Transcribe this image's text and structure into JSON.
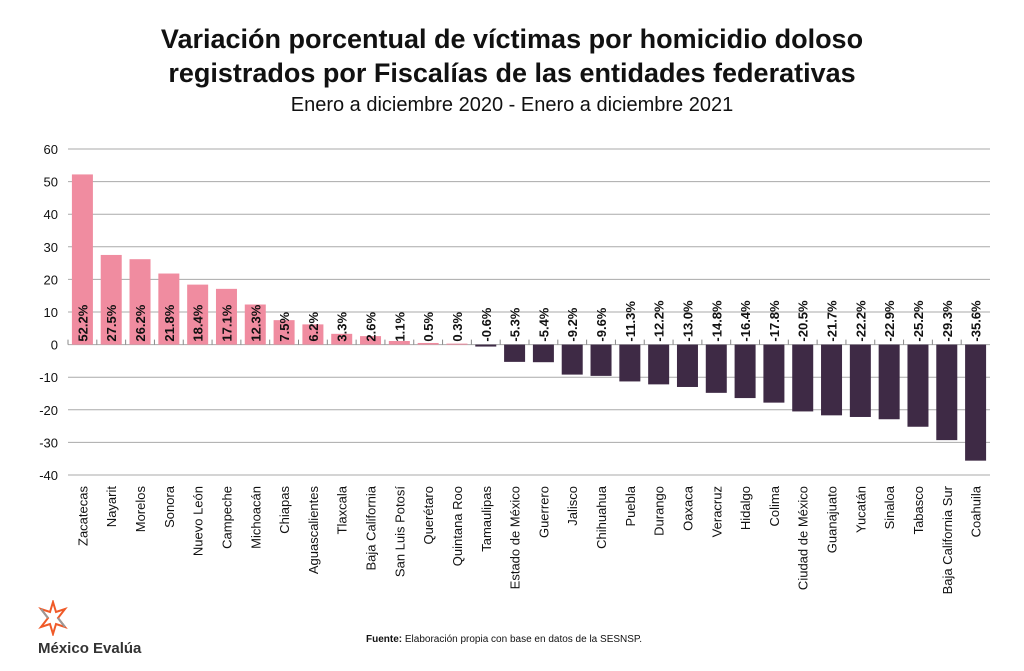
{
  "chart_data": {
    "type": "bar",
    "title_lines": [
      "Variación porcentual de víctimas por homicidio doloso",
      "registrados por Fiscalías de las entidades federativas"
    ],
    "subtitle": "Enero a diciembre 2020 - Enero a diciembre 2021",
    "xlabel": "",
    "ylabel": "",
    "ylim": [
      -40,
      60
    ],
    "yticks": [
      60,
      50,
      40,
      30,
      20,
      10,
      0,
      -10,
      -20,
      -30,
      -40
    ],
    "grid": true,
    "colors": {
      "positive": "#F08CA0",
      "negative": "#3E2A45"
    },
    "categories": [
      "Zacatecas",
      "Nayarit",
      "Morelos",
      "Sonora",
      "Nuevo León",
      "Campeche",
      "Michoacán",
      "Chiapas",
      "Aguascalientes",
      "Tlaxcala",
      "Baja California",
      "San Luis Potosí",
      "Querétaro",
      "Quintana Roo",
      "Tamaulipas",
      "Estado de México",
      "Guerrero",
      "Jalisco",
      "Chihuahua",
      "Puebla",
      "Durango",
      "Oaxaca",
      "Veracruz",
      "Hidalgo",
      "Colima",
      "Ciudad de México",
      "Guanajuato",
      "Yucatán",
      "Sinaloa",
      "Tabasco",
      "Baja California Sur",
      "Coahuila"
    ],
    "values": [
      52.2,
      27.5,
      26.2,
      21.8,
      18.4,
      17.1,
      12.3,
      7.5,
      6.2,
      3.3,
      2.6,
      1.1,
      0.5,
      0.3,
      -0.6,
      -5.3,
      -5.4,
      -9.2,
      -9.6,
      -11.3,
      -12.2,
      -13.0,
      -14.8,
      -16.4,
      -17.8,
      -20.5,
      -21.7,
      -22.2,
      -22.9,
      -25.2,
      -29.3,
      -35.6
    ],
    "data_labels": [
      "52.2%",
      "27.5%",
      "26.2%",
      "21.8%",
      "18.4%",
      "17.1%",
      "12.3%",
      "7.5%",
      "6.2%",
      "3.3%",
      "2.6%",
      "1.1%",
      "0.5%",
      "0.3%",
      "-0.6%",
      "-5.3%",
      "-5.4%",
      "-9.2%",
      "-9.6%",
      "-11.3%",
      "-12.2%",
      "-13.0%",
      "-14.8%",
      "-16.4%",
      "-17.8%",
      "-20.5%",
      "-21.7%",
      "-22.2%",
      "-22.9%",
      "-25.2%",
      "-29.3%",
      "-35.6%"
    ]
  },
  "footer": {
    "source_label": "Fuente:",
    "source_text": " Elaboración propia con base en datos de la SESNSP.",
    "logo_text": "México Evalúa"
  }
}
